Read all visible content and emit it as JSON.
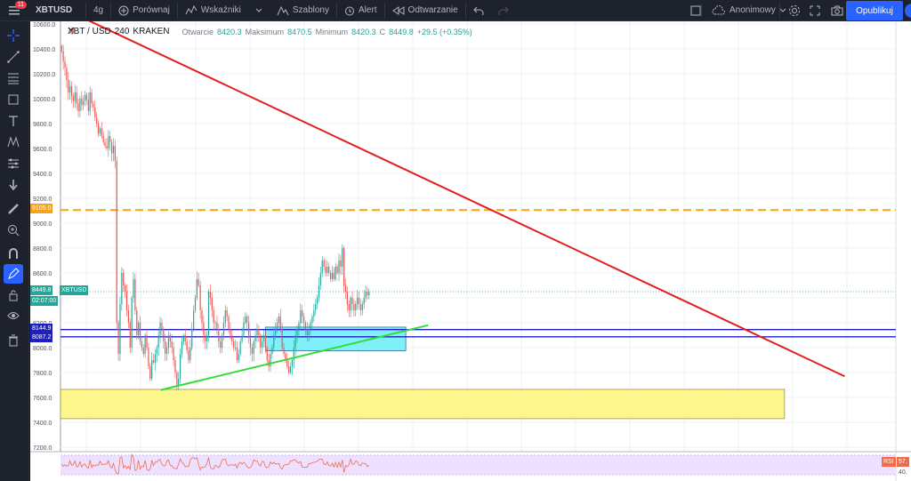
{
  "toolbar": {
    "menu_badge": "11",
    "symbol": "XBTUSD",
    "interval": "4g",
    "compare": "Porównaj",
    "indicators": "Wskaźniki",
    "templates": "Szablony",
    "alert": "Alert",
    "replay": "Odtwarzanie",
    "anonymous": "Anonimowy",
    "publish": "Opublikuj"
  },
  "legend": {
    "title": "XBT / USD",
    "interval": "240",
    "exchange": "KRAKEN",
    "open_label": "Otwarcie",
    "open": "8420.3",
    "high_label": "Maksimum",
    "high": "8470.5",
    "low_label": "Minimum",
    "low": "8420.3",
    "close_label": "C",
    "close": "8449.8",
    "change": "+29.5 (+0.35%)"
  },
  "price_labels": {
    "orange_level": "9105.0",
    "last_price": "8449.8",
    "last_symbol": "XBTUSD",
    "countdown": "02:07:00",
    "blue_upper": "8144.9",
    "blue_lower": "8087.2"
  },
  "rsi": {
    "label": "RSI",
    "value": "57.",
    "level": "40."
  },
  "colors": {
    "up": "#26a69a",
    "down": "#ef5350",
    "red_trendline": "#e02020",
    "green_trendline": "#33dd33",
    "orange_level": "#f7a21b",
    "blue_level": "#1e1ec8",
    "cyan_box": "#7ff0f8",
    "yellow_box": "#fdf68c",
    "rsi_band": "#eee1ff",
    "rsi_line": "#ef6c4a"
  },
  "chart_data": {
    "type": "candlestick",
    "symbol": "XBT / USD",
    "exchange": "KRAKEN",
    "interval": "240",
    "y_ticks": [
      7200,
      7400,
      7600,
      7800,
      8000,
      8200,
      8400,
      8600,
      8800,
      9000,
      9200,
      9400,
      9600,
      9800,
      10000,
      10200,
      10400,
      10600
    ],
    "y_tick_labels": [
      "7200.0",
      "7400.0",
      "7600.0",
      "7800.0",
      "8000.0",
      "8200.0",
      "8400.0",
      "8600.0",
      "8800.0",
      "9000.0",
      "9200.0",
      "9400.0",
      "9600.0",
      "9800.0",
      "10000.0",
      "10200.0",
      "10400.0",
      "10600.0"
    ],
    "ylim": [
      7165,
      10620
    ],
    "xlim": [
      0,
      375
    ],
    "close_series": [
      10380,
      10300,
      10250,
      10150,
      10050,
      10100,
      10020,
      9980,
      10050,
      9960,
      9900,
      10000,
      9950,
      9980,
      10030,
      9990,
      9900,
      10050,
      9960,
      9930,
      9850,
      9800,
      9720,
      9760,
      9700,
      9650,
      9620,
      9600,
      9700,
      9650,
      9560,
      9620,
      9500,
      8200,
      7950,
      8350,
      8600,
      8500,
      8450,
      8300,
      8200,
      8000,
      8400,
      8550,
      8300,
      8100,
      8200,
      8050,
      8000,
      7950,
      8100,
      8000,
      7850,
      7750,
      7900,
      7880,
      7950,
      8000,
      8100,
      8200,
      8150,
      8050,
      7950,
      8000,
      8100,
      8050,
      8000,
      7900,
      7800,
      7700,
      7750,
      7950,
      8050,
      8100,
      8050,
      7980,
      7900,
      8000,
      8150,
      8300,
      8400,
      8550,
      8500,
      8300,
      8200,
      8100,
      8050,
      8100,
      8450,
      8400,
      8300,
      8200,
      8200,
      8150,
      8050,
      8000,
      8100,
      8200,
      8300,
      8250,
      8150,
      8100,
      8050,
      8000,
      8000,
      7900,
      7950,
      8050,
      8100,
      8200,
      8250,
      8200,
      8100,
      8000,
      7950,
      8050,
      8100,
      8150,
      8100,
      8000,
      8050,
      8100,
      8000,
      7900,
      7850,
      7950,
      8000,
      8100,
      8150,
      8200,
      8250,
      8150,
      8000,
      7950,
      7900,
      7850,
      7800,
      7850,
      7900,
      8000,
      8100,
      8150,
      8200,
      8300,
      8250,
      8200,
      8150,
      8100,
      8150,
      8200,
      8250,
      8300,
      8350,
      8400,
      8500,
      8600,
      8700,
      8650,
      8600,
      8650,
      8600,
      8550,
      8600,
      8550,
      8650,
      8600,
      8700,
      8650,
      8800,
      8500,
      8450,
      8350,
      8300,
      8400,
      8350,
      8300,
      8350,
      8400,
      8350,
      8300,
      8350,
      8400,
      8450,
      8420,
      8450
    ],
    "horizontal_levels": [
      9105.0,
      8144.9,
      8087.2
    ],
    "trendlines": [
      {
        "name": "resistance",
        "x": [
          11,
          352
        ],
        "y": [
          10640,
          7770
        ]
      },
      {
        "name": "support",
        "x": [
          45,
          165
        ],
        "y": [
          7660,
          8180
        ]
      }
    ],
    "zones": [
      {
        "name": "cyan-box",
        "x": [
          92,
          155
        ],
        "y": [
          7975,
          8165
        ]
      },
      {
        "name": "yellow-box",
        "x": [
          0,
          325
        ],
        "y": [
          7430,
          7665
        ]
      }
    ],
    "rsi": {
      "overbought": 70,
      "oversold": 30,
      "last": 57,
      "level_label": 40
    },
    "grid": true
  }
}
